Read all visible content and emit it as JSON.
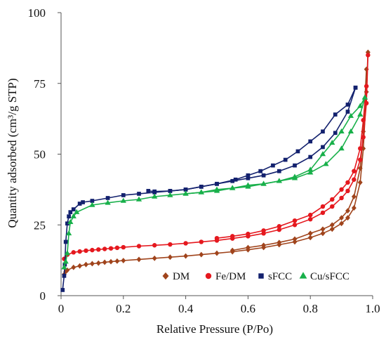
{
  "chart_data": {
    "type": "line",
    "xlabel": "Relative Pressure (P/Po)",
    "ylabel": "Quantity adsorbed (cm³/g STP)",
    "xlim": [
      0,
      1
    ],
    "ylim": [
      0,
      100
    ],
    "x_ticks": [
      "0",
      "0.2",
      "0.4",
      "0.6",
      "0.8",
      "1.0"
    ],
    "y_ticks": [
      "0",
      "25",
      "50",
      "75",
      "100"
    ],
    "grid": false,
    "legend_position": "bottom-right",
    "series": [
      {
        "name": "DM",
        "color": "#a0441c",
        "marker": "diamond",
        "adsorption": [
          [
            0.01,
            7.5
          ],
          [
            0.015,
            8.5
          ],
          [
            0.02,
            9
          ],
          [
            0.04,
            10
          ],
          [
            0.06,
            10.5
          ],
          [
            0.08,
            11
          ],
          [
            0.1,
            11.3
          ],
          [
            0.12,
            11.5
          ],
          [
            0.14,
            11.8
          ],
          [
            0.16,
            12
          ],
          [
            0.18,
            12.2
          ],
          [
            0.2,
            12.4
          ],
          [
            0.25,
            12.8
          ],
          [
            0.3,
            13.2
          ],
          [
            0.35,
            13.6
          ],
          [
            0.4,
            14
          ],
          [
            0.45,
            14.5
          ],
          [
            0.5,
            15
          ],
          [
            0.55,
            15.5
          ],
          [
            0.6,
            16.2
          ],
          [
            0.65,
            17
          ],
          [
            0.7,
            18
          ],
          [
            0.75,
            19
          ],
          [
            0.8,
            20.5
          ],
          [
            0.84,
            22
          ],
          [
            0.87,
            23.5
          ],
          [
            0.9,
            25.5
          ],
          [
            0.92,
            27.5
          ],
          [
            0.94,
            31
          ],
          [
            0.96,
            40
          ],
          [
            0.97,
            52
          ],
          [
            0.98,
            72
          ],
          [
            0.985,
            86
          ]
        ],
        "desorption": [
          [
            0.98,
            80
          ],
          [
            0.97,
            58
          ],
          [
            0.96,
            45
          ],
          [
            0.94,
            35
          ],
          [
            0.92,
            30
          ],
          [
            0.9,
            27.5
          ],
          [
            0.87,
            25
          ],
          [
            0.84,
            23.5
          ],
          [
            0.8,
            22
          ],
          [
            0.75,
            20
          ],
          [
            0.7,
            18.8
          ],
          [
            0.65,
            17.8
          ],
          [
            0.6,
            17
          ],
          [
            0.55,
            16
          ]
        ]
      },
      {
        "name": "Fe/DM",
        "color": "#e5181e",
        "marker": "circle",
        "adsorption": [
          [
            0.01,
            13
          ],
          [
            0.02,
            14.5
          ],
          [
            0.04,
            15.3
          ],
          [
            0.06,
            15.6
          ],
          [
            0.08,
            15.9
          ],
          [
            0.1,
            16.1
          ],
          [
            0.12,
            16.3
          ],
          [
            0.14,
            16.5
          ],
          [
            0.16,
            16.7
          ],
          [
            0.18,
            16.9
          ],
          [
            0.2,
            17.1
          ],
          [
            0.25,
            17.5
          ],
          [
            0.3,
            17.8
          ],
          [
            0.35,
            18.1
          ],
          [
            0.4,
            18.5
          ],
          [
            0.45,
            19
          ],
          [
            0.5,
            19.5
          ],
          [
            0.55,
            20.2
          ],
          [
            0.6,
            21
          ],
          [
            0.65,
            22
          ],
          [
            0.7,
            23.3
          ],
          [
            0.75,
            25
          ],
          [
            0.8,
            27
          ],
          [
            0.84,
            29.3
          ],
          [
            0.87,
            31.5
          ],
          [
            0.9,
            34.5
          ],
          [
            0.92,
            37
          ],
          [
            0.94,
            41
          ],
          [
            0.96,
            48
          ],
          [
            0.97,
            56
          ],
          [
            0.98,
            68
          ],
          [
            0.985,
            85
          ]
        ],
        "desorption": [
          [
            0.98,
            74
          ],
          [
            0.97,
            62
          ],
          [
            0.96,
            52
          ],
          [
            0.94,
            44
          ],
          [
            0.92,
            40
          ],
          [
            0.9,
            37.5
          ],
          [
            0.87,
            34
          ],
          [
            0.84,
            31.5
          ],
          [
            0.8,
            28.5
          ],
          [
            0.75,
            26.5
          ],
          [
            0.7,
            24.5
          ],
          [
            0.65,
            23
          ],
          [
            0.6,
            21.8
          ],
          [
            0.55,
            21
          ],
          [
            0.5,
            20.3
          ]
        ]
      },
      {
        "name": "sFCC",
        "color": "#13216e",
        "marker": "square",
        "adsorption": [
          [
            0.005,
            2
          ],
          [
            0.01,
            7
          ],
          [
            0.012,
            11
          ],
          [
            0.015,
            19
          ],
          [
            0.02,
            25.5
          ],
          [
            0.025,
            28
          ],
          [
            0.03,
            29.5
          ],
          [
            0.04,
            30.5
          ],
          [
            0.06,
            32.5
          ],
          [
            0.07,
            33
          ],
          [
            0.1,
            33.5
          ],
          [
            0.15,
            34.5
          ],
          [
            0.2,
            35.5
          ],
          [
            0.25,
            36
          ],
          [
            0.3,
            36.5
          ],
          [
            0.35,
            37
          ],
          [
            0.4,
            37.5
          ],
          [
            0.45,
            38.5
          ],
          [
            0.5,
            39.5
          ],
          [
            0.55,
            40.5
          ],
          [
            0.6,
            41.5
          ],
          [
            0.65,
            42.5
          ],
          [
            0.7,
            44
          ],
          [
            0.75,
            46
          ],
          [
            0.8,
            49
          ],
          [
            0.84,
            52.5
          ],
          [
            0.88,
            57.5
          ],
          [
            0.92,
            65
          ],
          [
            0.945,
            73.5
          ]
        ],
        "desorption": [
          [
            0.945,
            73.5
          ],
          [
            0.92,
            67.5
          ],
          [
            0.88,
            64
          ],
          [
            0.84,
            58
          ],
          [
            0.8,
            54.5
          ],
          [
            0.76,
            51
          ],
          [
            0.72,
            48
          ],
          [
            0.68,
            46
          ],
          [
            0.64,
            44
          ],
          [
            0.6,
            42.5
          ],
          [
            0.56,
            41
          ],
          [
            0.5,
            39.5
          ],
          [
            0.45,
            38.5
          ],
          [
            0.4,
            37.5
          ],
          [
            0.35,
            37
          ],
          [
            0.3,
            36.8
          ],
          [
            0.28,
            37
          ]
        ]
      },
      {
        "name": "Cu/sFCC",
        "color": "#18b04a",
        "marker": "triangle",
        "adsorption": [
          [
            0.01,
            10
          ],
          [
            0.015,
            12
          ],
          [
            0.02,
            15
          ],
          [
            0.025,
            22
          ],
          [
            0.03,
            26
          ],
          [
            0.04,
            28
          ],
          [
            0.05,
            29.5
          ],
          [
            0.1,
            32
          ],
          [
            0.15,
            32.8
          ],
          [
            0.2,
            33.5
          ],
          [
            0.25,
            34
          ],
          [
            0.3,
            35
          ],
          [
            0.35,
            35.5
          ],
          [
            0.4,
            36
          ],
          [
            0.45,
            36.5
          ],
          [
            0.5,
            37.5
          ],
          [
            0.55,
            38
          ],
          [
            0.6,
            39
          ],
          [
            0.65,
            39.5
          ],
          [
            0.7,
            40.5
          ],
          [
            0.75,
            41.5
          ],
          [
            0.8,
            43.5
          ],
          [
            0.85,
            46.5
          ],
          [
            0.9,
            52
          ],
          [
            0.93,
            58
          ],
          [
            0.96,
            64
          ],
          [
            0.975,
            70
          ]
        ],
        "desorption": [
          [
            0.975,
            70
          ],
          [
            0.96,
            67
          ],
          [
            0.93,
            63.5
          ],
          [
            0.9,
            58
          ],
          [
            0.87,
            54
          ],
          [
            0.84,
            50
          ],
          [
            0.8,
            44.5
          ],
          [
            0.75,
            42
          ],
          [
            0.7,
            40.5
          ],
          [
            0.65,
            39.5
          ],
          [
            0.6,
            38.5
          ],
          [
            0.55,
            38
          ],
          [
            0.5,
            37
          ],
          [
            0.45,
            36.5
          ],
          [
            0.4,
            36
          ]
        ]
      }
    ]
  }
}
